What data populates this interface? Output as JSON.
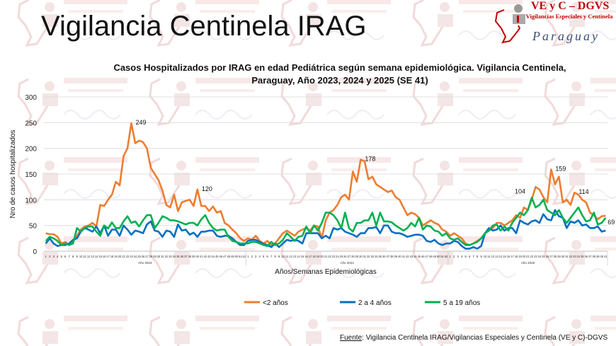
{
  "header": {
    "title": "Vigilancia Centinela IRAG"
  },
  "logo": {
    "line1": "VE y C – DGVS",
    "line2": "Vigilancias Especiales y Centinela",
    "line3": "Paraguay"
  },
  "watermark": {
    "line1": "VE y C – DGVS",
    "line2": "Vigilancias Especiales y",
    "line3": "Centinela",
    "line4": "Paraguay"
  },
  "footer": {
    "label": "Fuente",
    "text": ": Vigilancia  Centinela IRAG/Vigilancias Especiales y Centinela (VE y C)-DGVS"
  },
  "chart_data": {
    "type": "line",
    "title_line1": "Casos Hospitalizados por IRAG en edad Pediátrica según semana epidemiológica. Vigilancia Centinela,",
    "title_line2": "Paraguay, Año 2023, 2024 y 2025 (SE 41)",
    "xlabel": "Años/Semanas Epidemiológicas",
    "ylabel": "Nro de casos hospitalizados",
    "ylim": [
      0,
      300
    ],
    "yticks": [
      0,
      50,
      100,
      150,
      200,
      250,
      300
    ],
    "grid": true,
    "legend_position": "bottom",
    "years": [
      {
        "label": "Año 2023",
        "weeks": 52
      },
      {
        "label": "Año 2024",
        "weeks": 52
      },
      {
        "label": "Año 2025",
        "weeks": 41
      }
    ],
    "series": [
      {
        "name": "<2  años",
        "color": "#ED7D31",
        "values": [
          35,
          33,
          33,
          28,
          15,
          18,
          12,
          20,
          30,
          42,
          48,
          50,
          55,
          48,
          90,
          88,
          100,
          110,
          135,
          128,
          185,
          200,
          249,
          210,
          215,
          212,
          200,
          162,
          150,
          138,
          118,
          90,
          85,
          110,
          78,
          95,
          98,
          100,
          88,
          120,
          88,
          88,
          78,
          87,
          75,
          78,
          55,
          50,
          42,
          35,
          25,
          20,
          25,
          22,
          30,
          20,
          15,
          20,
          12,
          15,
          25,
          35,
          40,
          35,
          30,
          38,
          42,
          45,
          40,
          50,
          48,
          25,
          60,
          75,
          80,
          90,
          105,
          110,
          100,
          155,
          135,
          178,
          175,
          140,
          145,
          130,
          125,
          120,
          115,
          118,
          105,
          100,
          85,
          70,
          75,
          72,
          65,
          50,
          55,
          60,
          55,
          52,
          42,
          38,
          30,
          35,
          30,
          25,
          15,
          12,
          15,
          20,
          25,
          35,
          40,
          45,
          55,
          55,
          50,
          55,
          60,
          70,
          65,
          85,
          80,
          100,
          125,
          120,
          105,
          95,
          159,
          130,
          145,
          95,
          100,
          90,
          114,
          110,
          100,
          95,
          75,
          70,
          62,
          68,
          69
        ]
      },
      {
        "name": "2 a 4 años",
        "color": "#0070C0",
        "values": [
          15,
          25,
          15,
          10,
          12,
          12,
          15,
          22,
          25,
          38,
          45,
          42,
          38,
          48,
          35,
          50,
          30,
          42,
          42,
          30,
          50,
          42,
          32,
          40,
          38,
          35,
          52,
          58,
          40,
          38,
          28,
          40,
          38,
          28,
          52,
          40,
          42,
          32,
          36,
          28,
          38,
          38,
          40,
          40,
          30,
          28,
          30,
          30,
          25,
          18,
          12,
          12,
          20,
          22,
          22,
          18,
          14,
          12,
          8,
          15,
          8,
          15,
          22,
          20,
          22,
          20,
          15,
          35,
          35,
          35,
          35,
          25,
          30,
          25,
          45,
          42,
          45,
          38,
          35,
          32,
          28,
          35,
          35,
          45,
          45,
          47,
          35,
          50,
          50,
          38,
          35,
          35,
          32,
          28,
          30,
          32,
          32,
          30,
          20,
          18,
          22,
          15,
          12,
          15,
          15,
          20,
          18,
          10,
          5,
          5,
          8,
          5,
          10,
          35,
          45,
          40,
          42,
          50,
          40,
          45,
          45,
          35,
          60,
          55,
          52,
          58,
          60,
          55,
          72,
          62,
          60,
          80,
          68,
          65,
          45,
          58,
          55,
          60,
          50,
          52,
          45,
          45,
          48,
          38,
          40
        ]
      },
      {
        "name": "5 a 19 años",
        "color": "#00B050",
        "values": [
          20,
          28,
          25,
          20,
          12,
          15,
          12,
          15,
          45,
          38,
          45,
          48,
          48,
          38,
          30,
          50,
          44,
          56,
          45,
          45,
          58,
          68,
          55,
          58,
          48,
          60,
          70,
          70,
          45,
          55,
          68,
          65,
          60,
          60,
          58,
          55,
          52,
          55,
          55,
          50,
          62,
          70,
          55,
          45,
          40,
          42,
          42,
          28,
          20,
          18,
          15,
          15,
          15,
          18,
          18,
          15,
          12,
          10,
          18,
          12,
          15,
          22,
          35,
          28,
          20,
          28,
          30,
          48,
          35,
          50,
          40,
          55,
          75,
          75,
          70,
          60,
          45,
          75,
          45,
          38,
          55,
          55,
          60,
          60,
          75,
          50,
          75,
          58,
          58,
          56,
          50,
          45,
          40,
          45,
          55,
          48,
          65,
          42,
          50,
          48,
          40,
          38,
          30,
          35,
          25,
          22,
          25,
          18,
          12,
          12,
          15,
          18,
          25,
          35,
          40,
          50,
          52,
          40,
          48,
          40,
          55,
          65,
          75,
          70,
          80,
          104,
          85,
          90,
          100,
          80,
          75,
          70,
          80,
          65,
          55,
          65,
          75,
          85,
          70,
          58,
          60,
          75,
          52,
          55,
          65
        ]
      }
    ],
    "annotations": [
      {
        "series": 0,
        "index": 22,
        "label": "249"
      },
      {
        "series": 0,
        "index": 39,
        "label": "120"
      },
      {
        "series": 0,
        "index": 81,
        "label": "178"
      },
      {
        "series": 2,
        "index": 125,
        "label": "104"
      },
      {
        "series": 0,
        "index": 130,
        "label": "159"
      },
      {
        "series": 0,
        "index": 136,
        "label": "114"
      },
      {
        "series": 0,
        "index": 144,
        "label": "69"
      }
    ]
  }
}
